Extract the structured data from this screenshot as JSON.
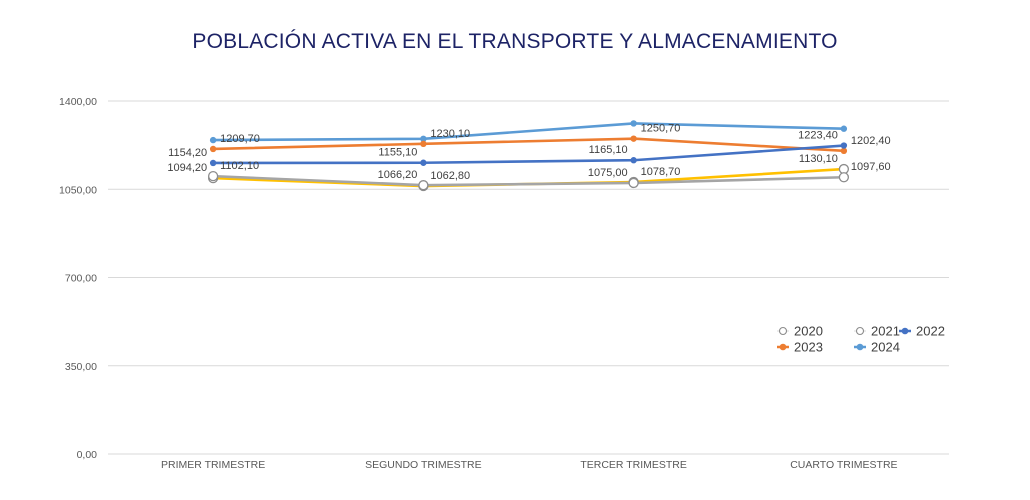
{
  "chart_data": {
    "type": "line",
    "title": "POBLACIÓN ACTIVA EN EL TRANSPORTE Y ALMACENAMIENTO",
    "xlabel": "",
    "ylabel": "",
    "categories": [
      "PRIMER TRIMESTRE",
      "SEGUNDO TRIMESTRE",
      "TERCER TRIMESTRE",
      "CUARTO TRIMESTRE"
    ],
    "ylim": [
      0,
      1400
    ],
    "yticks": [
      0,
      350,
      700,
      1050,
      1400
    ],
    "ytick_labels": [
      "0,00",
      "350,00",
      "700,00",
      "1050,00",
      "1400,00"
    ],
    "grid": true,
    "legend_position": "right",
    "series": [
      {
        "name": "2020",
        "color": "#A5A5A5",
        "marker": "hollow-circle",
        "values": [
          1102.1,
          1066.2,
          1075.0,
          1097.6
        ],
        "labels": [
          "1102,10",
          "1066,20",
          "1075,00",
          "1097,60"
        ],
        "label_side": [
          "right",
          "left",
          "left",
          "right"
        ]
      },
      {
        "name": "2021",
        "color": "#FFC000",
        "marker": "hollow-circle",
        "values": [
          1094.2,
          1062.8,
          1078.7,
          1130.1
        ],
        "labels": [
          "1094,20",
          "1062,80",
          "1078,70",
          "1130,10"
        ],
        "label_side": [
          "left",
          "right",
          "right",
          "left"
        ]
      },
      {
        "name": "2022",
        "color": "#4472C4",
        "marker": "filled-circle",
        "values": [
          1154.2,
          1155.1,
          1165.1,
          1223.4
        ],
        "labels": [
          "1154,20",
          "1155,10",
          "1165,10",
          "1223,40"
        ],
        "label_side": [
          "left",
          "left",
          "left",
          "left"
        ]
      },
      {
        "name": "2023",
        "color": "#ED7D31",
        "marker": "filled-circle",
        "values": [
          1209.7,
          1230.1,
          1250.7,
          1202.4
        ],
        "labels": [
          "1209,70",
          "1230,10",
          "1250,70",
          "1202,40"
        ],
        "label_side": [
          "right",
          "right",
          "right",
          "right"
        ]
      },
      {
        "name": "2024",
        "color": "#5B9BD5",
        "marker": "filled-circle",
        "values": [
          1245,
          1250,
          1311,
          1290
        ],
        "labels": [],
        "label_side": []
      }
    ],
    "legend_rows": [
      [
        "2020",
        "2021",
        "2022"
      ],
      [
        "2023",
        "2024"
      ]
    ]
  }
}
